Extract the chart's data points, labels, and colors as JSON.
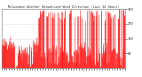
{
  "title": "Milwaukee Weather Normalized Wind Direction (Last 24 Hours)",
  "bg_color": "#ffffff",
  "plot_bg_color": "#ffffff",
  "bar_color": "#ff0000",
  "grid_color": "#aaaaaa",
  "ylim": [
    0,
    360
  ],
  "yticks": [
    90,
    180,
    270,
    360
  ],
  "num_points": 288,
  "seed": 42,
  "title_fontsize": 2.5,
  "tick_fontsize": 2.5,
  "linewidth": 0.4
}
